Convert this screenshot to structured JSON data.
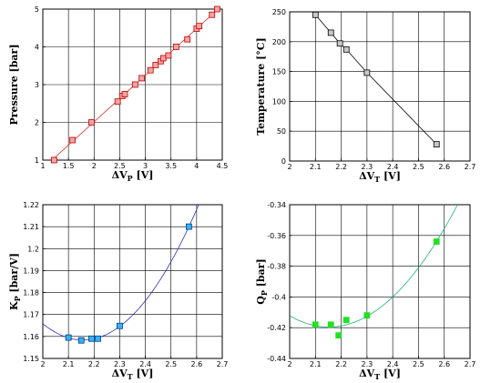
{
  "chart_data": [
    {
      "id": "a",
      "type": "scatter",
      "xlabel": "ΔV",
      "xlabel_sub": "P",
      "xlabel_unit": " [V]",
      "ylabel": "Pressure [bar]",
      "xlim": [
        1,
        4.5
      ],
      "ylim": [
        1,
        5
      ],
      "xticks": [
        1,
        1.5,
        2,
        2.5,
        3,
        3.5,
        4,
        4.5
      ],
      "xtick_labels": [
        "1",
        "1.5",
        "2",
        "2.5",
        "3",
        "3.5",
        "4",
        "4.5"
      ],
      "yticks": [
        1,
        2,
        3,
        4,
        5
      ],
      "ytick_labels": [
        "1",
        "2",
        "3",
        "4",
        "5"
      ],
      "grid": true,
      "series": [
        {
          "marker_color": "#f4a3a3",
          "marker_edge": "#c00000",
          "line_color": "#e03030",
          "fit": "line",
          "points": [
            [
              1.22,
              1.0
            ],
            [
              1.58,
              1.53
            ],
            [
              1.95,
              2.0
            ],
            [
              2.46,
              2.55
            ],
            [
              2.55,
              2.7
            ],
            [
              2.6,
              2.75
            ],
            [
              2.8,
              3.0
            ],
            [
              2.93,
              3.17
            ],
            [
              3.1,
              3.38
            ],
            [
              3.2,
              3.52
            ],
            [
              3.3,
              3.62
            ],
            [
              3.35,
              3.7
            ],
            [
              3.45,
              3.77
            ],
            [
              3.6,
              4.0
            ],
            [
              3.82,
              4.2
            ],
            [
              4.0,
              4.48
            ],
            [
              4.05,
              4.55
            ],
            [
              4.3,
              4.85
            ],
            [
              4.4,
              5.0
            ]
          ]
        }
      ]
    },
    {
      "id": "b",
      "type": "scatter",
      "xlabel": "ΔV",
      "xlabel_sub": "T",
      "xlabel_unit": " [V]",
      "ylabel": "Temperature [°C]",
      "xlim": [
        2,
        2.7
      ],
      "ylim": [
        0,
        250
      ],
      "xticks": [
        2,
        2.1,
        2.2,
        2.3,
        2.4,
        2.5,
        2.6,
        2.7
      ],
      "xtick_labels": [
        "2",
        "2.1",
        "2.2",
        "2.3",
        "2.4",
        "2.5",
        "2.6",
        "2.7"
      ],
      "yticks": [
        0,
        50,
        100,
        150,
        200,
        250
      ],
      "ytick_labels": [
        "0",
        "50",
        "100",
        "150",
        "200",
        "250"
      ],
      "grid": true,
      "series": [
        {
          "marker_color": "#c8c8c8",
          "marker_edge": "#000000",
          "line_color": "#000000",
          "fit": "polyline",
          "points": [
            [
              2.1,
              245
            ],
            [
              2.16,
              215
            ],
            [
              2.195,
              197
            ],
            [
              2.22,
              187
            ],
            [
              2.3,
              148
            ],
            [
              2.57,
              28
            ]
          ]
        }
      ]
    },
    {
      "id": "c",
      "type": "scatter",
      "xlabel": "ΔV",
      "xlabel_sub": "T",
      "xlabel_unit": " [V]",
      "ylabel": "K",
      "ylabel_sub": "P",
      "ylabel_unit": " [bar/V]",
      "xlim": [
        2,
        2.7
      ],
      "ylim": [
        1.15,
        1.22
      ],
      "xticks": [
        2,
        2.1,
        2.2,
        2.3,
        2.4,
        2.5,
        2.6,
        2.7
      ],
      "xtick_labels": [
        "2",
        "2.1",
        "2.2",
        "2.3",
        "2.4",
        "2.5",
        "2.6",
        "2.7"
      ],
      "yticks": [
        1.15,
        1.16,
        1.17,
        1.18,
        1.19,
        1.2,
        1.21,
        1.22
      ],
      "ytick_labels": [
        "1.15",
        "1.16",
        "1.17",
        "1.18",
        "1.19",
        "1.2",
        "1.21",
        "1.22"
      ],
      "grid": true,
      "series": [
        {
          "marker_color": "#33b5f0",
          "marker_edge": "#003c8f",
          "line_color": "#3030b0",
          "fit": "poly2",
          "points": [
            [
              2.1,
              1.1595
            ],
            [
              2.15,
              1.1582
            ],
            [
              2.19,
              1.159
            ],
            [
              2.215,
              1.159
            ],
            [
              2.3,
              1.1648
            ],
            [
              2.57,
              1.21
            ]
          ]
        }
      ]
    },
    {
      "id": "d",
      "type": "scatter",
      "xlabel": "ΔV",
      "xlabel_sub": "T",
      "xlabel_unit": " [V]",
      "ylabel": "Q",
      "ylabel_sub": "P",
      "ylabel_unit": " [bar]",
      "xlim": [
        2,
        2.7
      ],
      "ylim": [
        -0.44,
        -0.34
      ],
      "xticks": [
        2,
        2.1,
        2.2,
        2.3,
        2.4,
        2.5,
        2.6,
        2.7
      ],
      "xtick_labels": [
        "2",
        "2.1",
        "2.2",
        "2.3",
        "2.4",
        "2.5",
        "2.6",
        "2.7"
      ],
      "yticks": [
        -0.44,
        -0.42,
        -0.4,
        -0.38,
        -0.36,
        -0.34
      ],
      "ytick_labels": [
        "-0.44",
        "-0.42",
        "-0.4",
        "-0.38",
        "-0.36",
        "-0.34"
      ],
      "grid": true,
      "series": [
        {
          "marker_color": "#22e022",
          "marker_edge": "#22e022",
          "line_color": "#20b080",
          "fit": "poly2",
          "points": [
            [
              2.1,
              -0.418
            ],
            [
              2.16,
              -0.418
            ],
            [
              2.19,
              -0.425
            ],
            [
              2.22,
              -0.415
            ],
            [
              2.3,
              -0.412
            ],
            [
              2.57,
              -0.364
            ]
          ]
        }
      ]
    }
  ]
}
